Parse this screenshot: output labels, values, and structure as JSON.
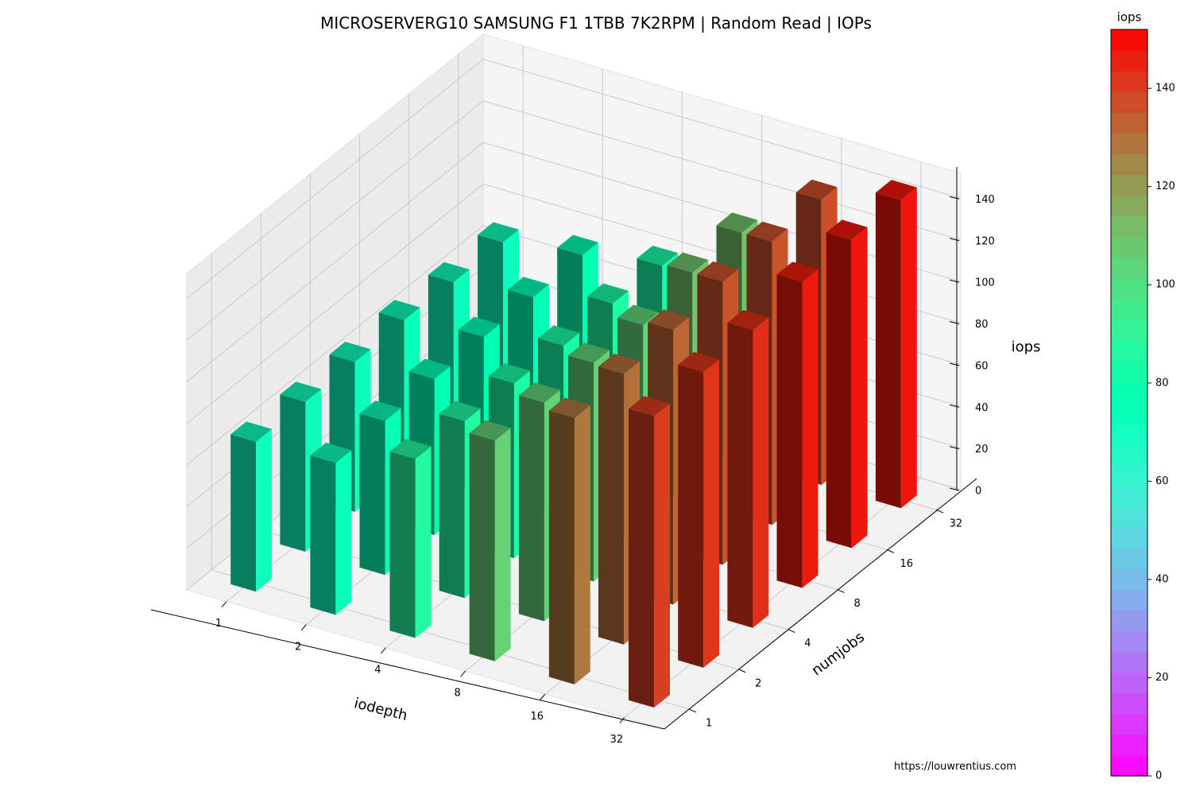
{
  "chart_data": {
    "type": "bar3d",
    "title": "MICROSERVERG10 SAMSUNG F1 1TBB 7K2RPM | Random Read | IOPs",
    "xlabel": "iodepth",
    "ylabel": "numjobs",
    "zlabel": "iops",
    "x_categories": [
      "1",
      "2",
      "4",
      "8",
      "16",
      "32"
    ],
    "y_categories": [
      "1",
      "2",
      "4",
      "8",
      "16",
      "32"
    ],
    "zlim": [
      0,
      152
    ],
    "zticks": [
      0,
      20,
      40,
      60,
      80,
      100,
      120,
      140
    ],
    "grid": true,
    "values": [
      [
        72,
        72,
        72,
        73,
        72,
        72
      ],
      [
        73,
        74,
        75,
        76,
        76,
        77
      ],
      [
        86,
        85,
        84,
        83,
        84,
        83
      ],
      [
        106,
        105,
        105,
        104,
        110,
        110
      ],
      [
        128,
        130,
        132,
        136,
        136,
        137
      ],
      [
        140,
        142,
        143,
        147,
        148,
        148
      ]
    ],
    "colorbar": {
      "label": "iops",
      "min": 0,
      "max": 152,
      "ticks": [
        0,
        20,
        40,
        60,
        80,
        100,
        120,
        140
      ],
      "colormap": "rainbow"
    }
  },
  "source": "https://louwrentius.com"
}
